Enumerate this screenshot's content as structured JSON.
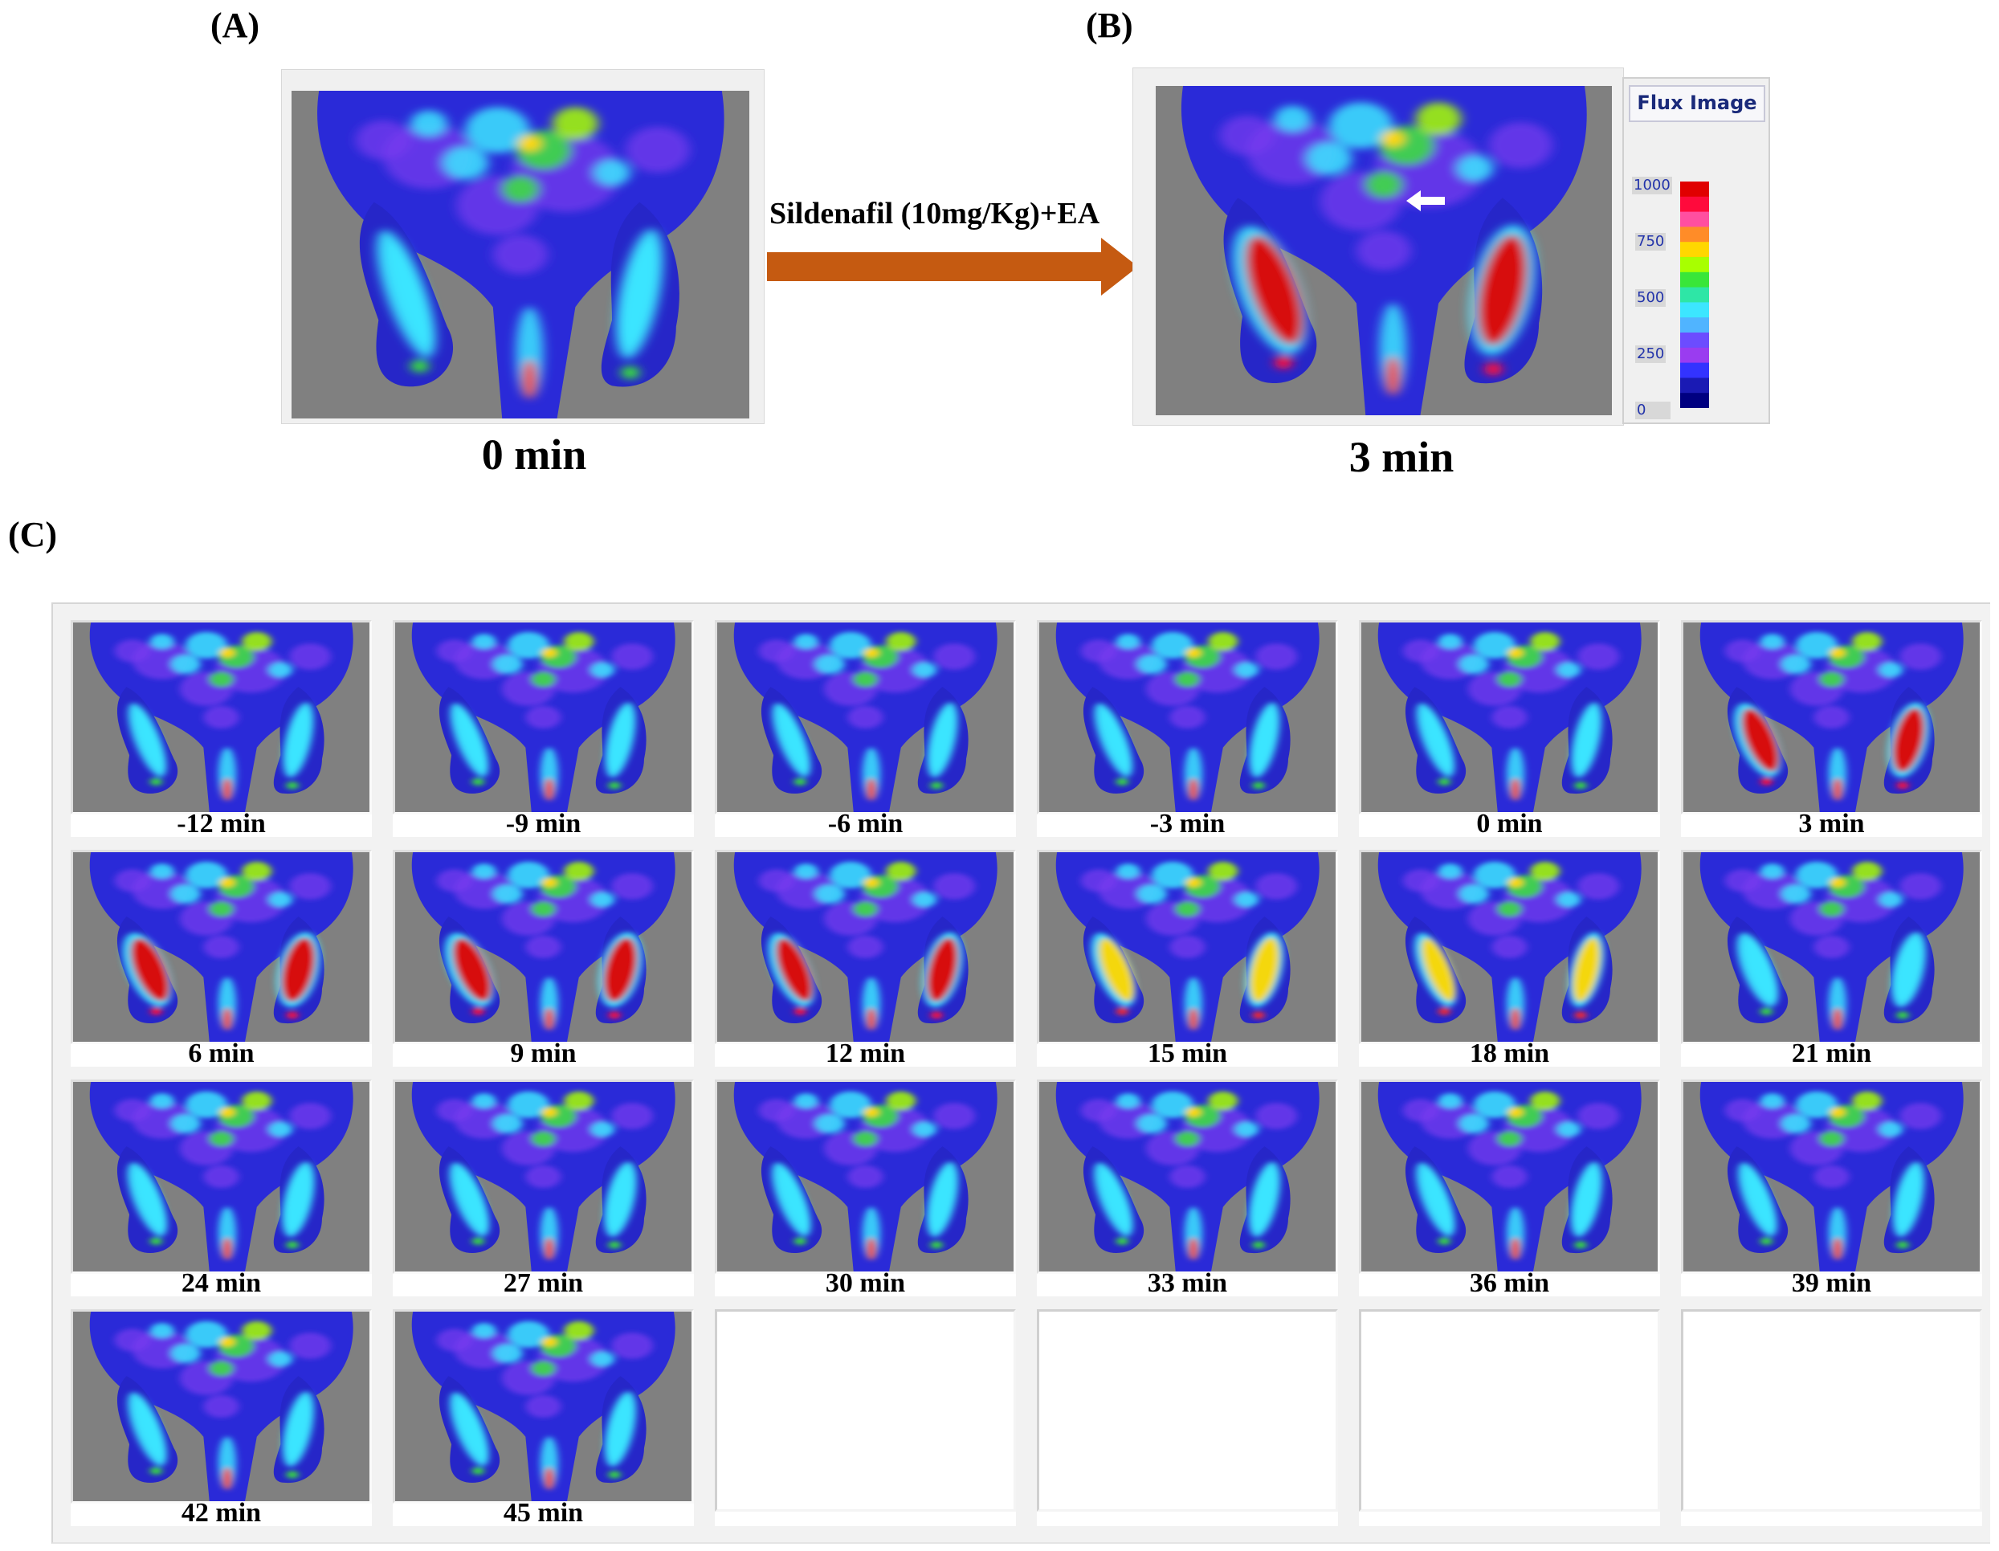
{
  "panels": {
    "a_label": "(A)",
    "b_label": "(B)",
    "c_label": "(C)",
    "a_caption": "0 min",
    "b_caption": "3 min"
  },
  "treatment": {
    "label": "Sildenafil (10mg/Kg)+EA",
    "arrow_color": "#c55a11"
  },
  "legend": {
    "title": "Flux Image",
    "ticks": [
      "1000",
      "750",
      "500",
      "250",
      "0"
    ],
    "colors": [
      "#e00000",
      "#ff0a3c",
      "#ff4fa0",
      "#ff8c28",
      "#ffd700",
      "#a8ff00",
      "#39e639",
      "#2ee6a6",
      "#3ce6ff",
      "#50b4ff",
      "#6c4cff",
      "#9a3cf0",
      "#3333ff",
      "#1a1ab4",
      "#000080"
    ]
  },
  "grid": {
    "captions": [
      "-12 min",
      "-9 min",
      "-6 min",
      "-3 min",
      "0 min",
      "3 min",
      "6 min",
      "9 min",
      "12 min",
      "15 min",
      "18 min",
      "21 min",
      "24 min",
      "27 min",
      "30 min",
      "33 min",
      "36 min",
      "39 min",
      "42 min",
      "45 min"
    ],
    "intensity": [
      0.35,
      0.35,
      0.35,
      0.35,
      0.35,
      0.9,
      1.0,
      1.0,
      0.85,
      0.75,
      0.6,
      0.55,
      0.45,
      0.45,
      0.4,
      0.4,
      0.4,
      0.4,
      0.4,
      0.4
    ]
  }
}
